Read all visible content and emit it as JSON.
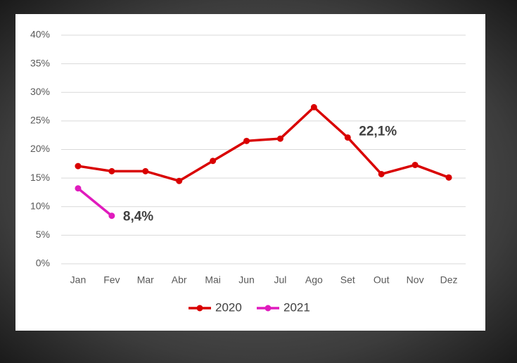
{
  "chart_data": {
    "type": "line",
    "categories": [
      "Jan",
      "Fev",
      "Mar",
      "Abr",
      "Mai",
      "Jun",
      "Jul",
      "Ago",
      "Set",
      "Out",
      "Nov",
      "Dez"
    ],
    "series": [
      {
        "name": "2020",
        "color": "#d90000",
        "values": [
          17.1,
          16.2,
          16.2,
          14.5,
          18.0,
          21.5,
          21.9,
          27.4,
          22.1,
          15.7,
          17.3,
          15.1
        ],
        "value_labels": [
          null,
          null,
          null,
          null,
          null,
          null,
          null,
          null,
          "22,1%",
          null,
          null,
          null
        ]
      },
      {
        "name": "2021",
        "color": "#e01bbd",
        "values": [
          13.2,
          8.4,
          null,
          null,
          null,
          null,
          null,
          null,
          null,
          null,
          null,
          null
        ],
        "value_labels": [
          null,
          "8,4%",
          null,
          null,
          null,
          null,
          null,
          null,
          null,
          null,
          null,
          null
        ]
      }
    ],
    "ylim": [
      0,
      40
    ],
    "yticks": [
      {
        "value": 0,
        "label": "0%"
      },
      {
        "value": 5,
        "label": "5%"
      },
      {
        "value": 10,
        "label": "10%"
      },
      {
        "value": 15,
        "label": "15%"
      },
      {
        "value": 20,
        "label": "20%"
      },
      {
        "value": 25,
        "label": "25%"
      },
      {
        "value": 30,
        "label": "30%"
      },
      {
        "value": 35,
        "label": "35%"
      },
      {
        "value": 40,
        "label": "40%"
      }
    ],
    "grid": true,
    "legend": "bottom"
  }
}
